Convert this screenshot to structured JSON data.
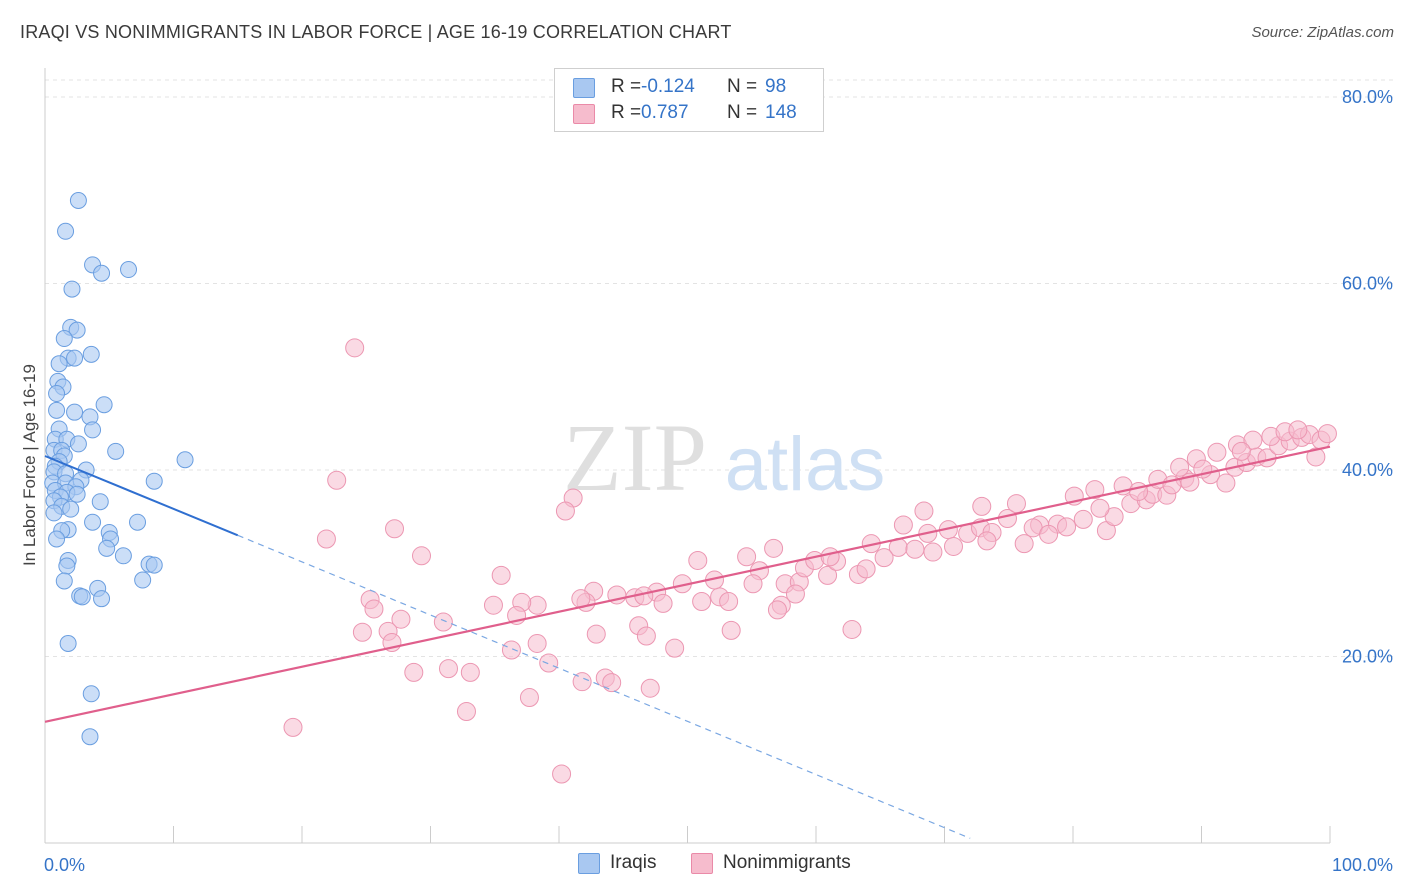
{
  "title": "IRAQI VS NONIMMIGRANTS IN LABOR FORCE | AGE 16-19 CORRELATION CHART",
  "source": "Source: ZipAtlas.com",
  "watermark": {
    "zip": "ZIP",
    "atlas": "atlas"
  },
  "legend": {
    "r_label": "R =",
    "n_label": "N =",
    "rows": [
      {
        "name": "Iraqis",
        "r": "-0.124",
        "n": "98",
        "fill": "#a9c8f1",
        "stroke": "#6a9ee0"
      },
      {
        "name": "Nonimmigrants",
        "r": "0.787",
        "n": "148",
        "fill": "#f6bccd",
        "stroke": "#ea8aa8"
      }
    ]
  },
  "colors": {
    "accent_text": "#3574c8",
    "blue_line": "#2f6fd0",
    "pink_line": "#e05f8c",
    "grid": "#e3e3e3"
  },
  "chart_data": {
    "type": "scatter",
    "xlabel": "",
    "ylabel": "In Labor Force | Age 16-19",
    "x_range": [
      0,
      100
    ],
    "y_range": [
      0,
      85
    ],
    "x_tick_labels": [
      "0.0%",
      "100.0%"
    ],
    "y_ticks": [
      {
        "value": 20,
        "label": "20.0%"
      },
      {
        "value": 40,
        "label": "40.0%"
      },
      {
        "value": 60,
        "label": "60.0%"
      },
      {
        "value": 80,
        "label": "80.0%"
      }
    ],
    "grid": true,
    "legend_position": "top-center",
    "series": [
      {
        "name": "Iraqis",
        "r": -0.124,
        "n": 98,
        "trend_solid": [
          [
            0,
            41.5
          ],
          [
            15,
            33.0
          ]
        ],
        "trend_dashed": [
          [
            15,
            33.0
          ],
          [
            72,
            0.5
          ]
        ],
        "points": [
          [
            2.6,
            68.9
          ],
          [
            1.6,
            65.6
          ],
          [
            3.7,
            62.0
          ],
          [
            4.4,
            61.1
          ],
          [
            6.5,
            61.5
          ],
          [
            2.1,
            59.4
          ],
          [
            2.0,
            55.3
          ],
          [
            2.5,
            55.0
          ],
          [
            1.5,
            54.1
          ],
          [
            1.8,
            52.0
          ],
          [
            2.3,
            52.0
          ],
          [
            1.1,
            51.4
          ],
          [
            3.6,
            52.4
          ],
          [
            1.0,
            49.5
          ],
          [
            1.4,
            48.9
          ],
          [
            0.9,
            48.2
          ],
          [
            4.6,
            47.0
          ],
          [
            0.9,
            46.4
          ],
          [
            2.3,
            46.2
          ],
          [
            3.5,
            45.7
          ],
          [
            1.1,
            44.4
          ],
          [
            3.7,
            44.3
          ],
          [
            0.8,
            43.3
          ],
          [
            1.7,
            43.3
          ],
          [
            2.6,
            42.8
          ],
          [
            0.7,
            42.1
          ],
          [
            1.3,
            42.1
          ],
          [
            5.5,
            42.0
          ],
          [
            1.5,
            41.5
          ],
          [
            10.9,
            41.1
          ],
          [
            1.1,
            40.9
          ],
          [
            0.8,
            40.4
          ],
          [
            3.2,
            40.0
          ],
          [
            0.7,
            39.8
          ],
          [
            1.6,
            39.6
          ],
          [
            2.8,
            38.9
          ],
          [
            8.5,
            38.8
          ],
          [
            0.6,
            38.6
          ],
          [
            1.6,
            38.6
          ],
          [
            2.4,
            38.2
          ],
          [
            0.8,
            37.8
          ],
          [
            1.7,
            37.6
          ],
          [
            2.5,
            37.4
          ],
          [
            1.2,
            37.1
          ],
          [
            0.7,
            36.7
          ],
          [
            4.3,
            36.6
          ],
          [
            1.3,
            36.1
          ],
          [
            2.0,
            35.8
          ],
          [
            0.7,
            35.4
          ],
          [
            3.7,
            34.4
          ],
          [
            7.2,
            34.4
          ],
          [
            1.8,
            33.6
          ],
          [
            1.3,
            33.5
          ],
          [
            5.0,
            33.3
          ],
          [
            5.1,
            32.6
          ],
          [
            0.9,
            32.6
          ],
          [
            4.8,
            31.6
          ],
          [
            6.1,
            30.8
          ],
          [
            1.8,
            30.3
          ],
          [
            8.1,
            29.9
          ],
          [
            8.5,
            29.8
          ],
          [
            1.7,
            29.7
          ],
          [
            7.6,
            28.2
          ],
          [
            1.5,
            28.1
          ],
          [
            4.1,
            27.3
          ],
          [
            2.7,
            26.5
          ],
          [
            4.4,
            26.2
          ],
          [
            2.9,
            26.4
          ],
          [
            1.8,
            21.4
          ],
          [
            3.6,
            16.0
          ],
          [
            3.5,
            11.4
          ]
        ]
      },
      {
        "name": "Nonimmigrants",
        "r": 0.787,
        "n": 148,
        "trend_solid": [
          [
            0,
            13.0
          ],
          [
            100,
            42.5
          ]
        ],
        "points": [
          [
            24.1,
            53.1
          ],
          [
            22.7,
            38.9
          ],
          [
            27.2,
            33.7
          ],
          [
            21.9,
            32.6
          ],
          [
            29.3,
            30.8
          ],
          [
            41.1,
            37.0
          ],
          [
            40.5,
            35.6
          ],
          [
            35.5,
            28.7
          ],
          [
            25.3,
            26.1
          ],
          [
            25.6,
            25.1
          ],
          [
            38.3,
            25.5
          ],
          [
            37.1,
            25.8
          ],
          [
            45.9,
            26.3
          ],
          [
            52.5,
            26.4
          ],
          [
            34.9,
            25.5
          ],
          [
            47.6,
            26.9
          ],
          [
            42.7,
            27.0
          ],
          [
            42.1,
            25.8
          ],
          [
            53.2,
            25.9
          ],
          [
            57.6,
            27.8
          ],
          [
            48.1,
            25.7
          ],
          [
            51.1,
            25.9
          ],
          [
            36.7,
            24.4
          ],
          [
            27.7,
            24.0
          ],
          [
            31.0,
            23.7
          ],
          [
            26.7,
            22.7
          ],
          [
            24.7,
            22.6
          ],
          [
            42.9,
            22.4
          ],
          [
            46.2,
            23.3
          ],
          [
            38.3,
            21.4
          ],
          [
            46.8,
            22.2
          ],
          [
            53.4,
            22.8
          ],
          [
            27.0,
            21.5
          ],
          [
            36.3,
            20.7
          ],
          [
            49.0,
            20.9
          ],
          [
            39.2,
            19.3
          ],
          [
            28.7,
            18.3
          ],
          [
            31.4,
            18.7
          ],
          [
            33.1,
            18.3
          ],
          [
            43.6,
            17.7
          ],
          [
            44.1,
            17.2
          ],
          [
            47.1,
            16.6
          ],
          [
            41.8,
            17.3
          ],
          [
            37.7,
            15.6
          ],
          [
            32.8,
            14.1
          ],
          [
            19.3,
            12.4
          ],
          [
            40.2,
            7.4
          ],
          [
            62.8,
            22.9
          ],
          [
            58.7,
            28.0
          ],
          [
            60.9,
            28.7
          ],
          [
            55.6,
            29.2
          ],
          [
            50.8,
            30.3
          ],
          [
            54.6,
            30.7
          ],
          [
            56.7,
            31.6
          ],
          [
            59.1,
            29.5
          ],
          [
            63.3,
            28.8
          ],
          [
            61.6,
            30.2
          ],
          [
            64.3,
            32.1
          ],
          [
            66.4,
            31.7
          ],
          [
            66.8,
            34.1
          ],
          [
            68.7,
            33.2
          ],
          [
            70.3,
            33.6
          ],
          [
            71.8,
            33.2
          ],
          [
            72.8,
            33.8
          ],
          [
            73.7,
            33.3
          ],
          [
            74.9,
            34.8
          ],
          [
            76.2,
            32.1
          ],
          [
            77.4,
            34.1
          ],
          [
            78.8,
            34.2
          ],
          [
            79.5,
            33.9
          ],
          [
            80.8,
            34.7
          ],
          [
            82.6,
            33.5
          ],
          [
            83.2,
            35.0
          ],
          [
            84.5,
            36.4
          ],
          [
            85.7,
            36.8
          ],
          [
            86.2,
            37.4
          ],
          [
            87.3,
            37.3
          ],
          [
            88.7,
            39.1
          ],
          [
            89.1,
            38.7
          ],
          [
            90.7,
            39.5
          ],
          [
            91.9,
            38.6
          ],
          [
            92.6,
            40.3
          ],
          [
            93.5,
            40.8
          ],
          [
            94.3,
            41.4
          ],
          [
            95.1,
            41.3
          ],
          [
            96.0,
            42.6
          ],
          [
            96.9,
            43.1
          ],
          [
            97.8,
            43.5
          ],
          [
            98.4,
            43.8
          ],
          [
            99.3,
            43.2
          ],
          [
            99.8,
            43.9
          ],
          [
            68.4,
            35.6
          ],
          [
            72.9,
            36.1
          ],
          [
            75.6,
            36.4
          ],
          [
            80.1,
            37.2
          ],
          [
            81.7,
            37.9
          ],
          [
            83.9,
            38.3
          ],
          [
            86.6,
            39.0
          ],
          [
            88.3,
            40.3
          ],
          [
            89.6,
            41.2
          ],
          [
            91.2,
            41.9
          ],
          [
            92.8,
            42.7
          ],
          [
            94.0,
            43.2
          ],
          [
            95.4,
            43.6
          ],
          [
            96.5,
            44.1
          ],
          [
            97.5,
            44.3
          ],
          [
            63.9,
            29.4
          ],
          [
            65.3,
            30.6
          ],
          [
            67.7,
            31.5
          ],
          [
            69.1,
            31.2
          ],
          [
            70.7,
            31.8
          ],
          [
            73.3,
            32.4
          ],
          [
            76.9,
            33.8
          ],
          [
            78.1,
            33.1
          ],
          [
            82.1,
            35.9
          ],
          [
            85.1,
            37.7
          ],
          [
            87.7,
            38.4
          ],
          [
            90.1,
            40.1
          ],
          [
            93.1,
            42.0
          ],
          [
            98.9,
            41.4
          ],
          [
            57.3,
            25.5
          ],
          [
            59.9,
            30.3
          ],
          [
            61.1,
            30.7
          ],
          [
            52.1,
            28.2
          ],
          [
            55.1,
            27.8
          ],
          [
            49.6,
            27.8
          ],
          [
            46.6,
            26.5
          ],
          [
            44.5,
            26.6
          ],
          [
            41.7,
            26.2
          ],
          [
            58.4,
            26.7
          ],
          [
            57.0,
            25.0
          ]
        ]
      }
    ]
  }
}
